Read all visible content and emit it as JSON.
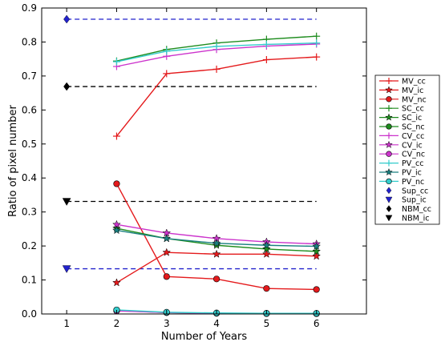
{
  "chart_data": {
    "type": "line",
    "xlabel": "Number of Years",
    "ylabel": "Ratio of pixel number",
    "xlim": [
      0.5,
      7.0
    ],
    "ylim": [
      0.0,
      0.9
    ],
    "xticks": [
      "1",
      "2",
      "3",
      "4",
      "5",
      "6"
    ],
    "yticks": [
      "0.0",
      "0.1",
      "0.2",
      "0.3",
      "0.4",
      "0.5",
      "0.6",
      "0.7",
      "0.8",
      "0.9"
    ],
    "grid": false,
    "legend_position": "right",
    "x": [
      2,
      3,
      4,
      5,
      6
    ],
    "series": [
      {
        "name": "MV_cc",
        "color": "#e41a1c",
        "marker": "plus",
        "values": [
          0.523,
          0.707,
          0.72,
          0.748,
          0.756
        ]
      },
      {
        "name": "MV_ic",
        "color": "#e41a1c",
        "marker": "star",
        "values": [
          0.092,
          0.181,
          0.176,
          0.176,
          0.17
        ]
      },
      {
        "name": "MV_nc",
        "color": "#e41a1c",
        "marker": "circle",
        "values": [
          0.383,
          0.11,
          0.103,
          0.075,
          0.072
        ]
      },
      {
        "name": "SC_cc",
        "color": "#1e8c1e",
        "marker": "plus",
        "values": [
          0.744,
          0.778,
          0.797,
          0.808,
          0.817
        ]
      },
      {
        "name": "SC_ic",
        "color": "#1e8c1e",
        "marker": "star",
        "values": [
          0.252,
          0.222,
          0.202,
          0.191,
          0.184
        ]
      },
      {
        "name": "SC_nc",
        "color": "#1e8c1e",
        "marker": "circle",
        "values": [
          0.01,
          0.004,
          0.002,
          0.002,
          0.001
        ]
      },
      {
        "name": "CV_cc",
        "color": "#cc33cc",
        "marker": "plus",
        "values": [
          0.728,
          0.758,
          0.778,
          0.788,
          0.794
        ]
      },
      {
        "name": "CV_ic",
        "color": "#cc33cc",
        "marker": "star",
        "values": [
          0.263,
          0.238,
          0.222,
          0.212,
          0.206
        ]
      },
      {
        "name": "CV_nc",
        "color": "#cc33cc",
        "marker": "circle",
        "values": [
          0.009,
          0.004,
          0.002,
          0.001,
          0.001
        ]
      },
      {
        "name": "PV_cc",
        "color": "#33cccc",
        "marker": "plus",
        "values": [
          0.742,
          0.773,
          0.787,
          0.793,
          0.797
        ]
      },
      {
        "name": "PV_ic",
        "color": "#1a8080",
        "marker": "star",
        "values": [
          0.246,
          0.222,
          0.208,
          0.202,
          0.199
        ]
      },
      {
        "name": "PV_nc",
        "color": "#33cccc",
        "marker": "circle",
        "values": [
          0.012,
          0.005,
          0.003,
          0.002,
          0.002
        ]
      }
    ],
    "references": [
      {
        "name": "Sup_cc",
        "color": "#2222cc",
        "marker": "diamond",
        "value": 0.867,
        "x": 1
      },
      {
        "name": "Sup_ic",
        "color": "#2222cc",
        "marker": "triangle",
        "value": 0.133,
        "x": 1
      },
      {
        "name": "NBM_cc",
        "color": "#000000",
        "marker": "diamond",
        "value": 0.669,
        "x": 1
      },
      {
        "name": "NBM_ic",
        "color": "#000000",
        "marker": "triangle",
        "value": 0.331,
        "x": 1
      }
    ],
    "reference_lines_extend_to_x": 6
  }
}
